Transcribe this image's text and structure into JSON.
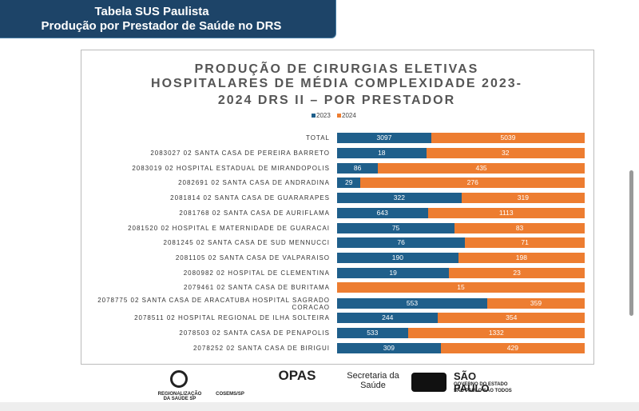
{
  "header": {
    "title": "Tabela SUS Paulista",
    "subtitle": "Produção por Prestador de Saúde no DRS"
  },
  "chart_data": {
    "type": "bar",
    "stacking": "percent",
    "orientation": "horizontal",
    "title": [
      "PRODUÇÃO DE CIRURGIAS ELETIVAS",
      "HOSPITALARES DE MÉDIA COMPLEXIDADE 2023-",
      "2024 DRS II – POR PRESTADOR"
    ],
    "legend": "top",
    "categories": [
      "TOTAL",
      "2083027 02 SANTA CASA DE PEREIRA BARRETO",
      "2083019 02 HOSPITAL ESTADUAL DE MIRANDOPOLIS",
      "2082691 02 SANTA CASA DE ANDRADINA",
      "2081814 02 SANTA CASA DE GUARARAPES",
      "2081768 02 SANTA CASA DE AURIFLAMA",
      "2081520 02 HOSPITAL E MATERNIDADE DE GUARACAI",
      "2081245 02 SANTA CASA DE SUD MENNUCCI",
      "2081105 02 SANTA CASA DE VALPARAISO",
      "2080982 02 HOSPITAL DE CLEMENTINA",
      "2079461 02 SANTA CASA DE  BURITAMA",
      "2078775 02 SANTA CASA DE ARACATUBA HOSPITAL SAGRADO CORACAO",
      "2078511 02 HOSPITAL REGIONAL DE ILHA SOLTEIRA",
      "2078503 02 SANTA CASA DE PENAPOLIS",
      "2078252 02 SANTA CASA DE BIRIGUI"
    ],
    "series": [
      {
        "name": "2023",
        "color": "#1f5f8b",
        "values": [
          3097,
          18,
          86,
          29,
          322,
          643,
          75,
          76,
          190,
          19,
          null,
          553,
          244,
          533,
          309
        ]
      },
      {
        "name": "2024",
        "color": "#ed7d31",
        "values": [
          5039,
          32,
          435,
          276,
          319,
          1113,
          83,
          71,
          198,
          23,
          15,
          359,
          354,
          1332,
          429
        ]
      }
    ]
  },
  "footer": {
    "logos": [
      "REGIONALIZAÇÃO DA SAÚDE SP",
      "COSEMS/SP",
      "OPAS",
      "Secretaria da Saúde",
      "SÃO PAULO",
      "GOVERNO DO ESTADO",
      "SÃO PAULO SÃO TODOS"
    ]
  }
}
